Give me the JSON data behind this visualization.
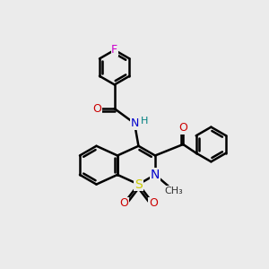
{
  "bg_color": "#ebebeb",
  "bond_color": "#000000",
  "bond_width": 1.8,
  "atom_colors": {
    "N": "#0000cc",
    "O": "#cc0000",
    "S": "#cccc00",
    "F": "#cc00cc",
    "H": "#008080",
    "C": "#000000"
  },
  "font_size": 9,
  "fig_size": [
    3.0,
    3.0
  ],
  "dpi": 100
}
